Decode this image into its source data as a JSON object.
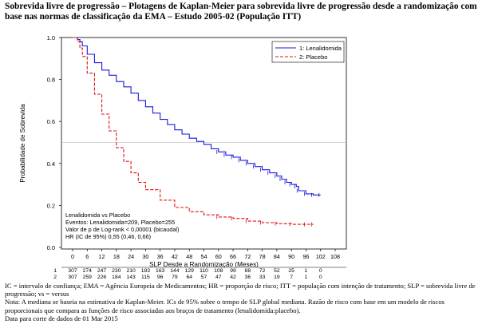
{
  "title": "Sobrevida livre de progressão – Plotagens de Kaplan-Meier para sobrevida livre de progressão desde a randomização com base nas normas de classificação da EMA – Estudo 2005-02 (População ITT)",
  "chart_data": {
    "type": "line",
    "ylabel": "Probabilidade de Sobrevida",
    "xlabel": "SLP Desde a Randomização (Meses)",
    "xlim": [
      0,
      108
    ],
    "ylim": [
      0,
      1.0
    ],
    "x_ticks": [
      "0",
      "6",
      "12",
      "18",
      "24",
      "30",
      "36",
      "42",
      "48",
      "54",
      "60",
      "66",
      "72",
      "78",
      "84",
      "90",
      "96",
      "102",
      "108"
    ],
    "y_ticks": [
      "0.0",
      "0.2",
      "0.4",
      "0.6",
      "0.8",
      "1.0"
    ],
    "legend_position": "top-right",
    "series": [
      {
        "name": "1: Lenalidomida",
        "color": "#1a1adc",
        "dash": "solid",
        "x": [
          0,
          2,
          3,
          4,
          6,
          9,
          12,
          15,
          18,
          21,
          24,
          27,
          30,
          33,
          36,
          39,
          42,
          45,
          48,
          51,
          54,
          57,
          60,
          63,
          66,
          69,
          72,
          75,
          78,
          81,
          84,
          86,
          88,
          90,
          92,
          93,
          96,
          99,
          102
        ],
        "y": [
          1.0,
          0.99,
          0.98,
          0.96,
          0.92,
          0.88,
          0.845,
          0.82,
          0.79,
          0.765,
          0.735,
          0.7,
          0.67,
          0.64,
          0.61,
          0.585,
          0.56,
          0.54,
          0.52,
          0.505,
          0.49,
          0.47,
          0.455,
          0.44,
          0.43,
          0.415,
          0.4,
          0.385,
          0.37,
          0.355,
          0.34,
          0.325,
          0.31,
          0.3,
          0.29,
          0.27,
          0.255,
          0.25,
          0.25
        ]
      },
      {
        "name": "2: Placebo",
        "color": "#e01010",
        "dash": "dashed",
        "x": [
          0,
          2,
          3,
          4,
          6,
          9,
          12,
          15,
          18,
          21,
          24,
          27,
          30,
          36,
          42,
          48,
          54,
          60,
          66,
          72,
          78,
          84,
          90,
          96,
          99
        ],
        "y": [
          1.0,
          0.98,
          0.95,
          0.91,
          0.83,
          0.73,
          0.635,
          0.555,
          0.475,
          0.41,
          0.355,
          0.31,
          0.275,
          0.225,
          0.19,
          0.17,
          0.155,
          0.145,
          0.138,
          0.125,
          0.118,
          0.113,
          0.11,
          0.11,
          0.11
        ]
      }
    ],
    "annotations": [
      "Lenalidomida vs Placebo",
      "Eventos: Lenalidomida=209, Placebo=255",
      "Valor de p de Log-rank < 0,00001 (bicaudal)",
      "HR (IC de 95%) 0,55 (0,46, 0,66)"
    ],
    "risk_table": {
      "rows": [
        {
          "label": "1",
          "values": [
            "307",
            "274",
            "247",
            "230",
            "210",
            "183",
            "163",
            "144",
            "129",
            "110",
            "108",
            "99",
            "88",
            "72",
            "52",
            "25",
            "1",
            "0"
          ]
        },
        {
          "label": "2",
          "values": [
            "307",
            "259",
            "226",
            "184",
            "143",
            "115",
            "96",
            "79",
            "64",
            "57",
            "47",
            "42",
            "36",
            "33",
            "19",
            "7",
            "1",
            "0"
          ]
        }
      ]
    }
  },
  "footnotes": [
    "IC = intervalo de confiança; EMA = Agência Europeia de Medicamentos; HR = proporção de risco; ITT = população com intenção de tratamento; SLP = sobrevida livre de progressão; vs = versus",
    "Nota: A mediana se baseia na estimativa de Kaplan-Meier. ICs de 95% sobre o tempo de SLP global mediana. Razão de risco com base em um modelo de riscos proporcionais que compara as funções de risco associadas aos braços de tratamento (lenalidomida:placebo).",
    "Data para corte de dados de 01 Mar 2015"
  ]
}
